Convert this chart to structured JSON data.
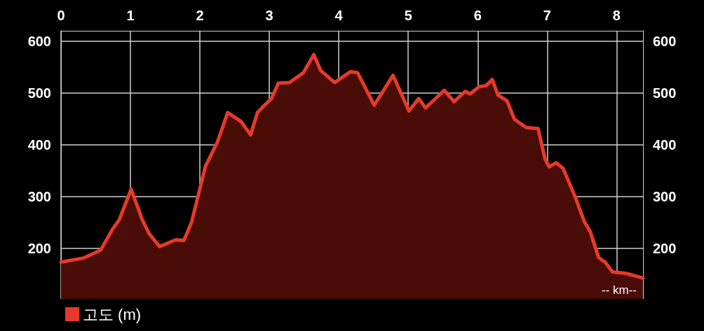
{
  "chart_data": {
    "type": "area",
    "xlabel": "-- km--",
    "grid": true,
    "legend": "bottom left",
    "marker": "none",
    "xlim": [
      0,
      8.38
    ],
    "xticks": [
      0,
      1,
      2,
      3,
      4,
      5,
      6,
      7,
      8
    ],
    "ylim": [
      102,
      620
    ],
    "yticks": [
      200,
      300,
      400,
      500,
      600
    ],
    "y2lim": [
      102,
      620
    ],
    "y2ticks": [
      200,
      300,
      400,
      500,
      600
    ],
    "x": [
      0,
      0.33,
      0.57,
      0.74,
      0.84,
      1.01,
      1.17,
      1.27,
      1.42,
      1.65,
      1.77,
      1.88,
      1.98,
      2.08,
      2.25,
      2.4,
      2.59,
      2.73,
      2.83,
      2.93,
      3.03,
      3.13,
      3.29,
      3.49,
      3.64,
      3.74,
      3.94,
      4.17,
      4.27,
      4.51,
      4.78,
      5.01,
      5.15,
      5.25,
      5.52,
      5.66,
      5.82,
      5.89,
      6.02,
      6.12,
      6.21,
      6.29,
      6.42,
      6.53,
      6.7,
      6.87,
      6.97,
      7.03,
      7.13,
      7.23,
      7.4,
      7.54,
      7.62,
      7.74,
      7.84,
      7.94,
      8.14,
      8.38
    ],
    "series": [
      {
        "name": "고도 (m)",
        "color": "#e53a2a",
        "values": [
          173,
          181,
          196,
          236,
          255,
          314,
          255,
          228,
          203,
          216,
          215,
          250,
          304,
          358,
          404,
          462,
          445,
          419,
          462,
          476,
          489,
          519,
          520,
          539,
          574,
          543,
          520,
          541,
          539,
          476,
          534,
          465,
          489,
          471,
          505,
          483,
          503,
          498,
          512,
          514,
          526,
          496,
          485,
          449,
          433,
          431,
          372,
          357,
          365,
          354,
          300,
          250,
          232,
          182,
          172,
          154,
          151,
          142
        ]
      }
    ]
  }
}
